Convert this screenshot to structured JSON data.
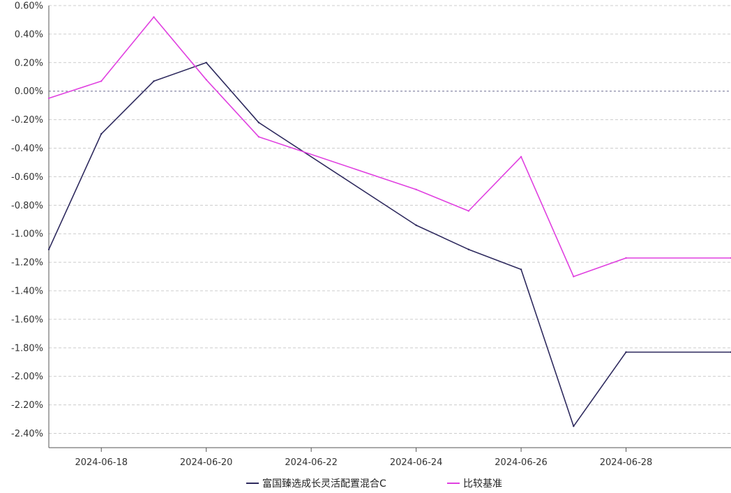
{
  "chart_data": {
    "type": "line",
    "title": "",
    "xlabel": "",
    "ylabel": "",
    "x": [
      "2024-06-17",
      "2024-06-18",
      "2024-06-19",
      "2024-06-20",
      "2024-06-21",
      "2024-06-24",
      "2024-06-25",
      "2024-06-26",
      "2024-06-27",
      "2024-06-28",
      "2024-06-30"
    ],
    "x_tick_labels": [
      "2024-06-18",
      "2024-06-20",
      "2024-06-22",
      "2024-06-24",
      "2024-06-26",
      "2024-06-28"
    ],
    "x_range": [
      "2024-06-17",
      "2024-06-30"
    ],
    "y_ticks": [
      0.6,
      0.4,
      0.2,
      0.0,
      -0.2,
      -0.4,
      -0.6,
      -0.8,
      -1.0,
      -1.2,
      -1.4,
      -1.6,
      -1.8,
      -2.0,
      -2.2,
      -2.4
    ],
    "y_tick_labels": [
      "0.60%",
      "0.40%",
      "0.20%",
      "0.00%",
      "-0.20%",
      "-0.40%",
      "-0.60%",
      "-0.80%",
      "-1.00%",
      "-1.20%",
      "-1.40%",
      "-1.60%",
      "-1.80%",
      "-2.00%",
      "-2.20%",
      "-2.40%"
    ],
    "ylim": [
      -2.5,
      0.6
    ],
    "grid": true,
    "legend_position": "bottom-center",
    "series": [
      {
        "name": "富国臻选成长灵活配置混合C",
        "color": "#2e2a5e",
        "values": [
          -1.11,
          -0.3,
          0.07,
          0.2,
          -0.22,
          -0.94,
          -1.11,
          -1.25,
          -2.35,
          -1.83,
          -1.83
        ]
      },
      {
        "name": "比较基准",
        "color": "#e040e0",
        "values": [
          -0.05,
          0.07,
          0.52,
          0.08,
          -0.32,
          -0.69,
          -0.84,
          -0.46,
          -1.3,
          -1.17,
          -1.17
        ]
      }
    ]
  }
}
